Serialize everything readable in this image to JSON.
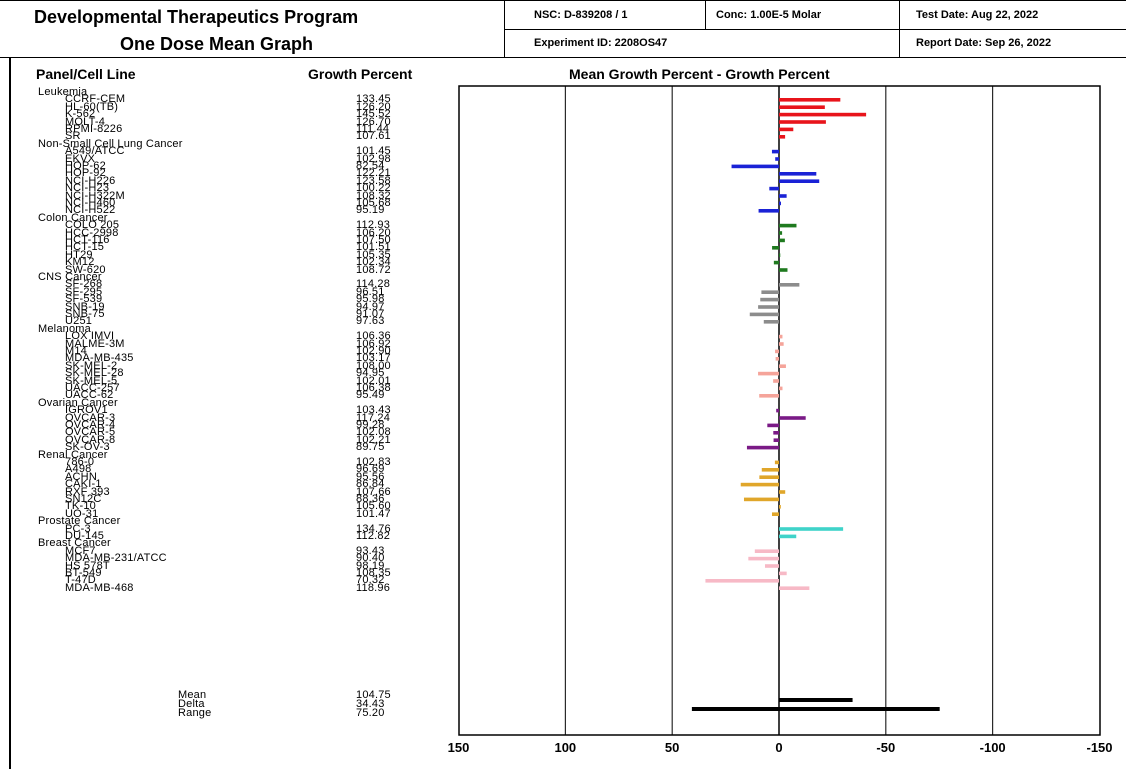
{
  "header": {
    "program": "Developmental Therapeutics Program",
    "graph_title": "One Dose Mean Graph",
    "nsc": "NSC: D-839208 / 1",
    "conc": "Conc: 1.00E-5 Molar",
    "test_date": "Test Date: Aug 22, 2022",
    "experiment_id": "Experiment ID: 2208OS47",
    "report_date": "Report Date: Sep 26, 2022"
  },
  "columns": {
    "panel": "Panel/Cell Line",
    "growth": "Growth Percent",
    "chart": "Mean Growth Percent - Growth Percent"
  },
  "chart_data": {
    "type": "bar",
    "orientation": "horizontal",
    "title": "Mean Growth Percent - Growth Percent",
    "mean": 104.75,
    "x_ticks": [
      "150",
      "100",
      "50",
      "0",
      "-50",
      "-100",
      "-150"
    ],
    "xlim": [
      150,
      -150
    ],
    "grid": true,
    "colors": {
      "Leukemia": "#e8141b",
      "Non-Small Cell Lung Cancer": "#1a22d6",
      "Colon Cancer": "#1f7a1f",
      "CNS Cancer": "#8c8c8c",
      "Melanoma": "#f5a49a",
      "Ovarian Cancer": "#7a1a86",
      "Renal Cancer": "#e0a62a",
      "Prostate Cancer": "#3fd3c9",
      "Breast Cancer": "#f7b9c6",
      "Summary": "#000000"
    },
    "panels": [
      {
        "name": "Leukemia",
        "cells": [
          {
            "name": "CCRF-CEM",
            "value": 133.45
          },
          {
            "name": "HL-60(TB)",
            "value": 126.2
          },
          {
            "name": "K-562",
            "value": 145.52
          },
          {
            "name": "MOLT-4",
            "value": 126.7
          },
          {
            "name": "RPMI-8226",
            "value": 111.44
          },
          {
            "name": "SR",
            "value": 107.61
          }
        ]
      },
      {
        "name": "Non-Small Cell Lung Cancer",
        "cells": [
          {
            "name": "A549/ATCC",
            "value": 101.45
          },
          {
            "name": "EKVX",
            "value": 102.98
          },
          {
            "name": "HOP-62",
            "value": 82.54
          },
          {
            "name": "HOP-92",
            "value": 122.21
          },
          {
            "name": "NCI-H226",
            "value": 123.58
          },
          {
            "name": "NCI-H23",
            "value": 100.22
          },
          {
            "name": "NCI-H322M",
            "value": 108.32
          },
          {
            "name": "NCI-H460",
            "value": 105.68
          },
          {
            "name": "NCI-H522",
            "value": 95.19
          }
        ]
      },
      {
        "name": "Colon Cancer",
        "cells": [
          {
            "name": "COLO 205",
            "value": 112.93
          },
          {
            "name": "HCC-2998",
            "value": 106.2
          },
          {
            "name": "HCT-116",
            "value": 107.5
          },
          {
            "name": "HCT-15",
            "value": 101.51
          },
          {
            "name": "HT29",
            "value": 105.35
          },
          {
            "name": "KM12",
            "value": 102.34
          },
          {
            "name": "SW-620",
            "value": 108.72
          }
        ]
      },
      {
        "name": "CNS Cancer",
        "cells": [
          {
            "name": "SF-268",
            "value": 114.28
          },
          {
            "name": "SF-295",
            "value": 96.51
          },
          {
            "name": "SF-539",
            "value": 95.98
          },
          {
            "name": "SNB-19",
            "value": 94.97
          },
          {
            "name": "SNB-75",
            "value": 91.07
          },
          {
            "name": "U251",
            "value": 97.63
          }
        ]
      },
      {
        "name": "Melanoma",
        "cells": [
          {
            "name": "LOX IMVI",
            "value": 106.36
          },
          {
            "name": "MALME-3M",
            "value": 106.92
          },
          {
            "name": "M14",
            "value": 102.9
          },
          {
            "name": "MDA-MB-435",
            "value": 103.17
          },
          {
            "name": "SK-MEL-2",
            "value": 108.0
          },
          {
            "name": "SK-MEL-28",
            "value": 94.95
          },
          {
            "name": "SK-MEL-5",
            "value": 102.01
          },
          {
            "name": "UACC-257",
            "value": 106.38
          },
          {
            "name": "UACC-62",
            "value": 95.49
          }
        ]
      },
      {
        "name": "Ovarian Cancer",
        "cells": [
          {
            "name": "IGROV1",
            "value": 103.43
          },
          {
            "name": "OVCAR-3",
            "value": 117.24
          },
          {
            "name": "OVCAR-4",
            "value": 99.28
          },
          {
            "name": "OVCAR-5",
            "value": 102.08
          },
          {
            "name": "OVCAR-8",
            "value": 102.21
          },
          {
            "name": "SK-OV-3",
            "value": 89.75
          }
        ]
      },
      {
        "name": "Renal Cancer",
        "cells": [
          {
            "name": "786-0",
            "value": 102.83
          },
          {
            "name": "A498",
            "value": 96.69
          },
          {
            "name": "ACHN",
            "value": 95.56
          },
          {
            "name": "CAKI-1",
            "value": 86.84
          },
          {
            "name": "RXF 393",
            "value": 107.66
          },
          {
            "name": "SN12C",
            "value": 88.36
          },
          {
            "name": "TK-10",
            "value": 105.6
          },
          {
            "name": "UO-31",
            "value": 101.47
          }
        ]
      },
      {
        "name": "Prostate Cancer",
        "cells": [
          {
            "name": "PC-3",
            "value": 134.76
          },
          {
            "name": "DU-145",
            "value": 112.82
          }
        ]
      },
      {
        "name": "Breast Cancer",
        "cells": [
          {
            "name": "MCF7",
            "value": 93.43
          },
          {
            "name": "MDA-MB-231/ATCC",
            "value": 90.4
          },
          {
            "name": "HS 578T",
            "value": 98.19
          },
          {
            "name": "BT-549",
            "value": 108.35
          },
          {
            "name": "T-47D",
            "value": 70.32
          },
          {
            "name": "MDA-MB-468",
            "value": 118.96
          }
        ]
      }
    ],
    "summary": [
      {
        "name": "Mean",
        "value": "104.75"
      },
      {
        "name": "Delta",
        "value": "34.43",
        "bar": 34.43
      },
      {
        "name": "Range",
        "value": "75.20",
        "bar": [
          -75.2,
          -40.77
        ]
      }
    ]
  }
}
